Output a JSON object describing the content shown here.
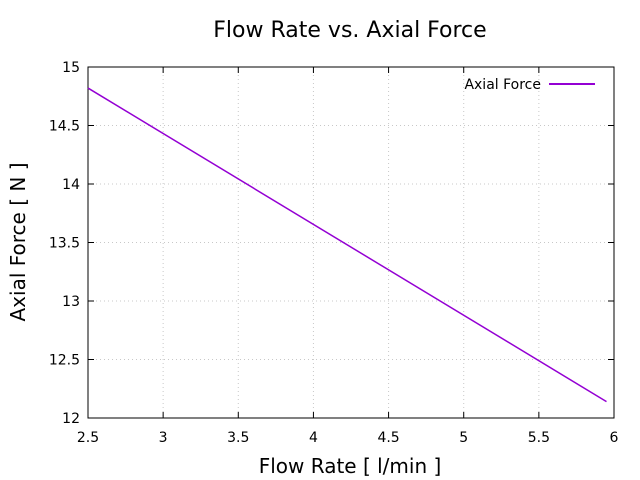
{
  "chart_data": {
    "type": "line",
    "title": "Flow Rate vs. Axial Force",
    "xlabel": "Flow Rate [ l/min ]",
    "ylabel": "Axial Force [ N ]",
    "xlim": [
      2.5,
      6
    ],
    "ylim": [
      12,
      15
    ],
    "x_ticks": [
      2.5,
      3,
      3.5,
      4,
      4.5,
      5,
      5.5,
      6
    ],
    "y_ticks": [
      12,
      12.5,
      13,
      13.5,
      14,
      14.5,
      15
    ],
    "x_tick_labels": [
      "2.5",
      "3",
      "3.5",
      "4",
      "4.5",
      "5",
      "5.5",
      "6"
    ],
    "y_tick_labels": [
      "12",
      "12.5",
      "13",
      "13.5",
      "14",
      "14.5",
      "15"
    ],
    "grid": true,
    "legend_position": "top-right",
    "series": [
      {
        "name": "Axial Force",
        "color": "#9400d3",
        "x": [
          2.5,
          5.95
        ],
        "y": [
          14.82,
          12.14
        ]
      }
    ]
  }
}
